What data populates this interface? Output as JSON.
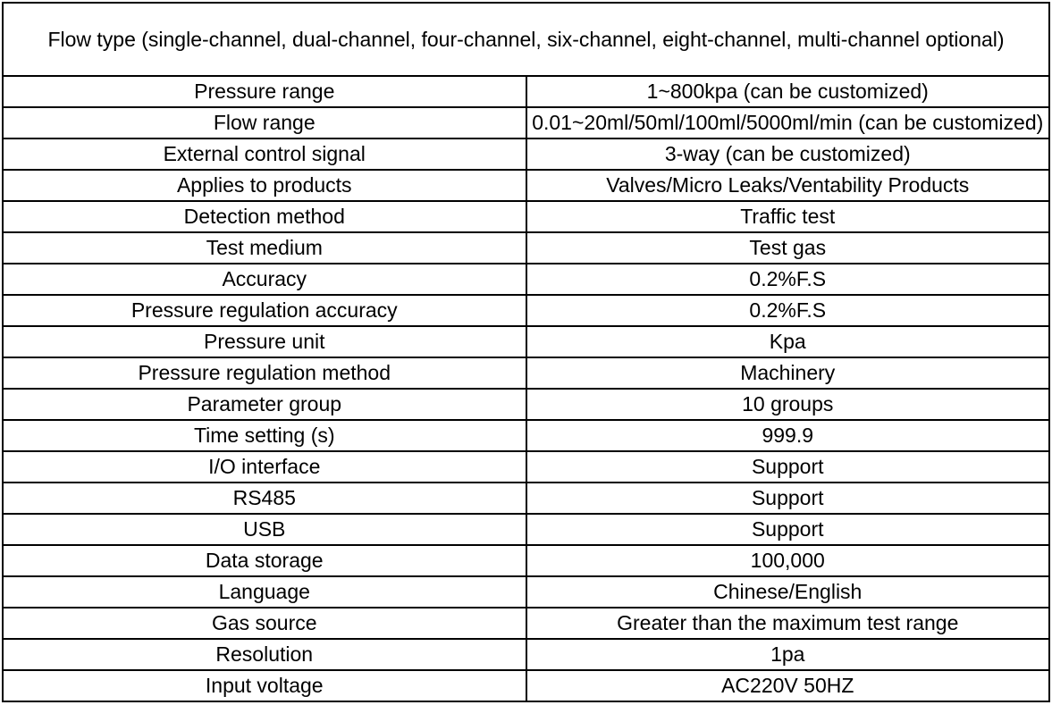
{
  "table": {
    "header": "Flow type (single-channel, dual-channel, four-channel, six-channel, eight-channel, multi-channel optional)",
    "rows": [
      {
        "label": "Pressure range",
        "value": "1~800kpa (can be customized)"
      },
      {
        "label": "Flow range",
        "value": "0.01~20ml/50ml/100ml/5000ml/min (can be customized)"
      },
      {
        "label": "External control signal",
        "value": "3-way (can be customized)"
      },
      {
        "label": "Applies to products",
        "value": "Valves/Micro Leaks/Ventability Products"
      },
      {
        "label": "Detection method",
        "value": "Traffic test"
      },
      {
        "label": "Test medium",
        "value": "Test gas"
      },
      {
        "label": "Accuracy",
        "value": "0.2%F.S"
      },
      {
        "label": "Pressure regulation accuracy",
        "value": "0.2%F.S"
      },
      {
        "label": "Pressure unit",
        "value": "Kpa"
      },
      {
        "label": "Pressure regulation method",
        "value": "Machinery"
      },
      {
        "label": "Parameter group",
        "value": "10 groups"
      },
      {
        "label": "Time setting (s)",
        "value": "999.9"
      },
      {
        "label": "I/O interface",
        "value": "Support"
      },
      {
        "label": "RS485",
        "value": "Support"
      },
      {
        "label": "USB",
        "value": "Support"
      },
      {
        "label": "Data storage",
        "value": "100,000"
      },
      {
        "label": "Language",
        "value": "Chinese/English"
      },
      {
        "label": "Gas source",
        "value": "Greater than the maximum test range"
      },
      {
        "label": "Resolution",
        "value": "1pa"
      },
      {
        "label": "Input voltage",
        "value": "AC220V 50HZ"
      }
    ],
    "colors": {
      "border": "#000000",
      "text": "#000000",
      "background": "#ffffff"
    }
  }
}
